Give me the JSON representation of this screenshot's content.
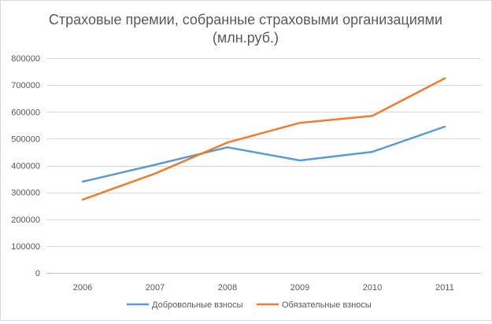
{
  "chart_data": {
    "type": "line",
    "title_lines": [
      "Страховые премии, собранные страховыми организациями",
      "(млн.руб.)"
    ],
    "categories": [
      "2006",
      "2007",
      "2008",
      "2009",
      "2010",
      "2011"
    ],
    "series": [
      {
        "name": "Добровольные взносы",
        "color": "#5b9bd5",
        "values": [
          340000,
          403000,
          468000,
          419000,
          451000,
          545000
        ]
      },
      {
        "name": "Обязательные взносы",
        "color": "#ed7d31",
        "values": [
          273000,
          370000,
          486000,
          559000,
          585000,
          725000
        ]
      }
    ],
    "y_ticks": [
      "0",
      "100000",
      "200000",
      "300000",
      "400000",
      "500000",
      "600000",
      "700000",
      "800000"
    ],
    "ylim": [
      0,
      800000
    ],
    "grid": true,
    "legend_position": "bottom",
    "xlabel": "",
    "ylabel": ""
  }
}
